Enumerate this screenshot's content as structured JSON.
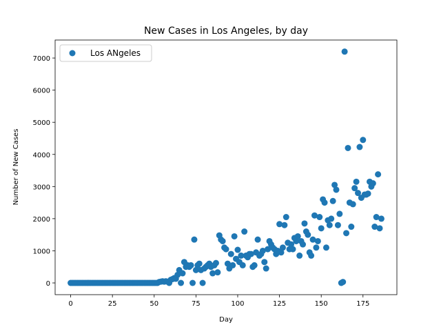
{
  "chart_data": {
    "type": "scatter",
    "title": "New Cases in Los Angeles, by day",
    "x_label": "Day",
    "y_label": "Number of New Cases",
    "legend": "upper left",
    "grid": false,
    "xlim": [
      -9.3,
      195.3
    ],
    "ylim": [
      -365,
      7560
    ],
    "xticks": [
      0,
      25,
      50,
      75,
      100,
      125,
      150,
      175
    ],
    "yticks": [
      0,
      1000,
      2000,
      3000,
      4000,
      5000,
      6000,
      7000
    ],
    "series": [
      {
        "name": "Los ANgeles",
        "color": "#1f77b4",
        "x": [
          0,
          1,
          2,
          3,
          4,
          5,
          6,
          7,
          8,
          9,
          10,
          11,
          12,
          13,
          14,
          15,
          16,
          17,
          18,
          19,
          20,
          21,
          22,
          23,
          24,
          25,
          26,
          27,
          28,
          29,
          30,
          31,
          32,
          33,
          34,
          35,
          36,
          37,
          38,
          39,
          40,
          41,
          42,
          43,
          44,
          45,
          46,
          47,
          48,
          49,
          50,
          51,
          52,
          53,
          54,
          55,
          56,
          57,
          58,
          59,
          60,
          61,
          62,
          63,
          64,
          65,
          66,
          67,
          68,
          69,
          70,
          71,
          72,
          73,
          74,
          75,
          76,
          77,
          78,
          79,
          80,
          81,
          82,
          83,
          84,
          85,
          86,
          87,
          88,
          89,
          90,
          91,
          92,
          93,
          94,
          95,
          96,
          97,
          98,
          99,
          100,
          101,
          102,
          103,
          104,
          105,
          106,
          107,
          108,
          109,
          110,
          111,
          112,
          113,
          114,
          115,
          116,
          117,
          118,
          119,
          120,
          121,
          122,
          123,
          124,
          125,
          126,
          127,
          128,
          129,
          130,
          131,
          132,
          133,
          134,
          135,
          136,
          137,
          138,
          139,
          140,
          141,
          142,
          143,
          144,
          145,
          146,
          147,
          148,
          149,
          150,
          151,
          152,
          153,
          154,
          155,
          156,
          157,
          158,
          159,
          160,
          161,
          162,
          163,
          164,
          165,
          166,
          167,
          168,
          169,
          170,
          171,
          172,
          173,
          174,
          175,
          176,
          177,
          178,
          179,
          180,
          181,
          182,
          183,
          184,
          185,
          186
        ],
        "values": [
          0,
          0,
          0,
          0,
          0,
          0,
          0,
          0,
          0,
          0,
          0,
          0,
          0,
          0,
          0,
          0,
          0,
          0,
          0,
          0,
          0,
          0,
          0,
          0,
          0,
          0,
          0,
          0,
          0,
          0,
          0,
          0,
          0,
          0,
          0,
          0,
          0,
          0,
          0,
          0,
          0,
          0,
          0,
          0,
          0,
          0,
          0,
          0,
          0,
          0,
          0,
          0,
          0,
          30,
          40,
          50,
          40,
          50,
          40,
          0,
          100,
          120,
          150,
          130,
          250,
          400,
          0,
          300,
          650,
          500,
          550,
          500,
          550,
          0,
          1350,
          400,
          550,
          600,
          400,
          0,
          450,
          500,
          550,
          600,
          500,
          300,
          550,
          620,
          330,
          1480,
          1350,
          1300,
          1100,
          1050,
          600,
          450,
          900,
          550,
          1450,
          750,
          1030,
          650,
          850,
          550,
          1600,
          850,
          800,
          900,
          900,
          500,
          550,
          950,
          1350,
          850,
          900,
          1000,
          650,
          450,
          1050,
          1300,
          1200,
          1100,
          1050,
          900,
          1000,
          1830,
          950,
          1100,
          1800,
          2050,
          1250,
          1050,
          1200,
          1050,
          1400,
          1300,
          1450,
          850,
          1300,
          1200,
          1850,
          1600,
          1500,
          950,
          850,
          1350,
          2100,
          1100,
          1300,
          2050,
          1700,
          2600,
          2500,
          1100,
          1950,
          1800,
          2000,
          2550,
          3050,
          2900,
          1800,
          2150,
          0,
          30,
          7200,
          1550,
          4200,
          2500,
          1750,
          2450,
          2950,
          3150,
          2800,
          4230,
          2650,
          4450,
          2750,
          2750,
          2780,
          3150,
          3000,
          3100,
          1750,
          2050,
          3380,
          1700,
          2000
        ]
      }
    ]
  }
}
